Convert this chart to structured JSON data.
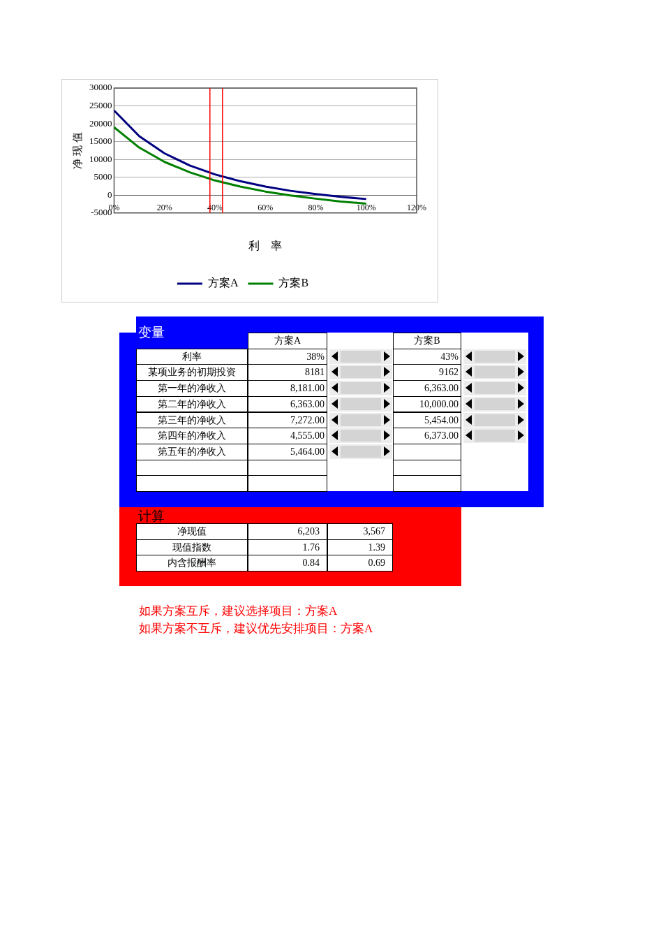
{
  "chart_data": [
    {
      "type": "line",
      "ylabel": "净 现 值",
      "xlabel": "利　率",
      "x": [
        0,
        0.1,
        0.2,
        0.3,
        0.4,
        0.5,
        0.6,
        0.7,
        0.8,
        0.9,
        1
      ],
      "series": [
        {
          "name": "方案A",
          "color": "#000080",
          "values": [
            23700,
            16500,
            11700,
            8300,
            5800,
            3900,
            2400,
            1200,
            300,
            -500,
            -1100
          ]
        },
        {
          "name": "方案B",
          "color": "#008000",
          "values": [
            19000,
            13300,
            9300,
            6400,
            4100,
            2400,
            1000,
            -100,
            -1000,
            -1800,
            -2400
          ]
        }
      ],
      "xlim": [
        0,
        1.2
      ],
      "xticks": [
        {
          "value": 0,
          "label": "0%"
        },
        {
          "value": 0.2,
          "label": "20%"
        },
        {
          "value": 0.4,
          "label": "40%"
        },
        {
          "value": 0.6,
          "label": "60%"
        },
        {
          "value": 0.8,
          "label": "80%"
        },
        {
          "value": 1,
          "label": "100%"
        },
        {
          "value": 1.2,
          "label": "120%"
        }
      ],
      "ylim": [
        -5000,
        30000
      ],
      "yticks": [
        -5000,
        0,
        5000,
        10000,
        15000,
        20000,
        25000,
        30000
      ],
      "ref_lines": [
        {
          "axis": "x",
          "value": 0.38,
          "color": "#ff0000"
        },
        {
          "axis": "x",
          "value": 0.43,
          "color": "#ff0000"
        }
      ],
      "grid": "y",
      "legend": "bottom",
      "marker": "none",
      "line_style": "solid"
    },
    {
      "type": "other",
      "title": "变量",
      "categories": [
        "方案A",
        "方案B"
      ],
      "y_categories": [
        "利率",
        "某项业务的初期投资",
        "第一年的净收入",
        "第二年的净收入",
        "第三年的净收入",
        "第四年的净收入",
        "第五年的净收入",
        null,
        null
      ],
      "cell_labels": [
        [
          "38%",
          "43%"
        ],
        [
          "8181",
          "9162"
        ],
        [
          "8,181.00",
          "6,363.00"
        ],
        [
          "6,363.00",
          "10,000.00"
        ],
        [
          "7,272.00",
          "5,454.00"
        ],
        [
          "4,555.00",
          "6,373.00"
        ],
        [
          "5,464.00",
          null
        ],
        [
          null,
          null
        ],
        [
          null,
          null
        ]
      ]
    },
    {
      "type": "other",
      "title": "计算",
      "y_categories": [
        "净现值",
        "现值指数",
        "内含报酬率"
      ],
      "cell_labels": [
        [
          "6,203",
          "3,567"
        ],
        [
          "1.76",
          "1.39"
        ],
        [
          "0.84",
          "0.69"
        ]
      ],
      "annotations": [
        "如果方案互斥，建议选择项目：方案A",
        "如果方案不互斥，建议优先安排项目：方案A"
      ]
    }
  ]
}
